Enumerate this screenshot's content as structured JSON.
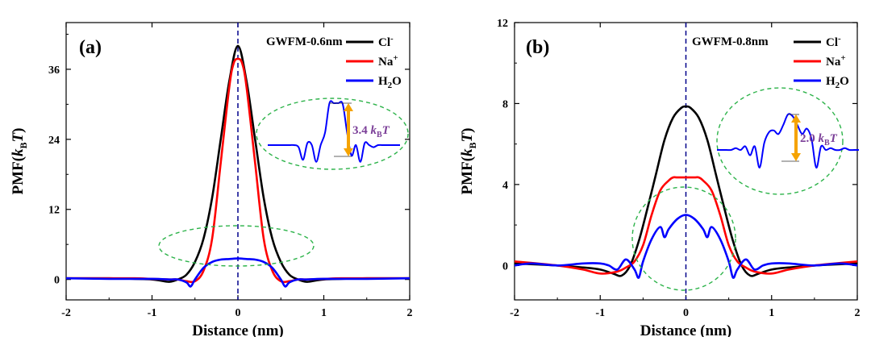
{
  "chart_data": [
    {
      "type": "line",
      "panel_label": "(a)",
      "annotation": "GWFM-0.6nm",
      "xlabel": "Distance (nm)",
      "ylabel_main": "PMF(",
      "ylabel_k": "k",
      "ylabel_sub": "B",
      "ylabel_T": "T",
      "ylabel_close": ")",
      "xlim": [
        -2,
        2
      ],
      "ylim": [
        -3.5,
        44
      ],
      "xticks": [
        -2,
        -1,
        0,
        1,
        2
      ],
      "yticks": [
        0,
        12,
        24,
        36
      ],
      "legend_position": "top-right",
      "legend": [
        {
          "key": "cl",
          "base": "Cl",
          "sup": "-",
          "sub": "",
          "color": "#000000"
        },
        {
          "key": "na",
          "base": "Na",
          "sup": "+",
          "sub": "",
          "color": "#ff0000"
        },
        {
          "key": "h2o",
          "base": "H",
          "sup": "",
          "sub": "2",
          "tail": "O",
          "color": "#0000ff"
        }
      ],
      "series": [
        {
          "name": "Cl-",
          "color": "#000000",
          "x": [
            -2,
            -1.5,
            -1.2,
            -1.0,
            -0.9,
            -0.8,
            -0.7,
            -0.6,
            -0.5,
            -0.4,
            -0.3,
            -0.2,
            -0.1,
            0,
            0.1,
            0.2,
            0.3,
            0.4,
            0.5,
            0.6,
            0.7,
            0.8,
            0.9,
            1.0,
            1.2,
            1.5,
            2
          ],
          "y": [
            0.2,
            0.2,
            0.1,
            0.0,
            -0.2,
            -0.4,
            0.0,
            0.8,
            3.0,
            7.0,
            14.0,
            24.0,
            34.0,
            40.0,
            34.0,
            24.0,
            14.0,
            7.0,
            3.0,
            0.8,
            0.0,
            -0.4,
            -0.2,
            0.0,
            0.1,
            0.2,
            0.2
          ]
        },
        {
          "name": "Na+",
          "color": "#ff0000",
          "x": [
            -2,
            -1.5,
            -1.2,
            -1.0,
            -0.8,
            -0.7,
            -0.6,
            -0.5,
            -0.4,
            -0.3,
            -0.2,
            -0.1,
            -0.05,
            0,
            0.05,
            0.1,
            0.2,
            0.3,
            0.4,
            0.5,
            0.6,
            0.7,
            0.8,
            1.0,
            1.2,
            1.5,
            2
          ],
          "y": [
            0.2,
            0.2,
            0.2,
            0.1,
            0.0,
            0.0,
            -0.3,
            -0.3,
            1.5,
            7.0,
            20.0,
            33.0,
            37.0,
            37.8,
            37.0,
            33.0,
            20.0,
            7.0,
            1.5,
            -0.3,
            -0.3,
            0.0,
            0.0,
            0.1,
            0.2,
            0.2,
            0.2
          ]
        },
        {
          "name": "H2O",
          "color": "#0000ff",
          "x": [
            -2,
            -1.5,
            -1.0,
            -0.8,
            -0.7,
            -0.6,
            -0.55,
            -0.5,
            -0.4,
            -0.3,
            -0.2,
            -0.1,
            0,
            0.1,
            0.2,
            0.3,
            0.4,
            0.5,
            0.55,
            0.6,
            0.7,
            0.8,
            1.0,
            1.5,
            2
          ],
          "y": [
            0.2,
            0.1,
            0.1,
            0.0,
            0.0,
            -0.5,
            -1.2,
            0.0,
            2.0,
            3.0,
            3.4,
            3.5,
            3.6,
            3.5,
            3.4,
            3.0,
            2.0,
            0.0,
            -1.2,
            -0.5,
            0.0,
            0.0,
            0.1,
            0.1,
            0.2
          ]
        }
      ],
      "inset_label_value": "3.4",
      "inset_label_k": "k",
      "inset_label_sub": "B",
      "inset_label_T": "T",
      "inset_trace": [
        0,
        0,
        0,
        0,
        0,
        0,
        0,
        -0.05,
        -0.35,
        0.05,
        0,
        -0.4,
        0,
        0.3,
        1.0,
        1.0,
        1.0,
        0.98,
        0.3,
        -0.25,
        0.0,
        -0.4,
        0.05,
        0,
        -0.05,
        0,
        0,
        0,
        0,
        0,
        0
      ],
      "inset_peak_fraction": 0.62
    },
    {
      "type": "line",
      "panel_label": "(b)",
      "annotation": "GWFM-0.8nm",
      "xlabel": "Distance (nm)",
      "ylabel_main": "PMF(",
      "ylabel_k": "k",
      "ylabel_sub": "B",
      "ylabel_T": "T",
      "ylabel_close": ")",
      "xlim": [
        -2,
        2
      ],
      "ylim": [
        -1.7,
        12
      ],
      "xticks": [
        -2,
        -1,
        0,
        1,
        2
      ],
      "yticks": [
        0,
        4,
        8,
        12
      ],
      "legend_position": "top-right",
      "legend": [
        {
          "key": "cl",
          "base": "Cl",
          "sup": "-",
          "sub": "",
          "color": "#000000"
        },
        {
          "key": "na",
          "base": "Na",
          "sup": "+",
          "sub": "",
          "color": "#ff0000"
        },
        {
          "key": "h2o",
          "base": "H",
          "sup": "",
          "sub": "2",
          "tail": "O",
          "color": "#0000ff"
        }
      ],
      "series": [
        {
          "name": "Cl-",
          "color": "#000000",
          "x": [
            -2,
            -1.5,
            -1.2,
            -1.0,
            -0.85,
            -0.75,
            -0.65,
            -0.55,
            -0.45,
            -0.35,
            -0.25,
            -0.15,
            -0.05,
            0,
            0.05,
            0.15,
            0.25,
            0.35,
            0.45,
            0.55,
            0.65,
            0.75,
            0.85,
            1.0,
            1.2,
            1.5,
            2
          ],
          "y": [
            0.1,
            0.0,
            -0.1,
            -0.2,
            -0.4,
            -0.5,
            0.0,
            1.2,
            2.8,
            4.5,
            6.2,
            7.3,
            7.8,
            7.85,
            7.8,
            7.3,
            6.2,
            4.5,
            2.8,
            1.2,
            0.0,
            -0.5,
            -0.4,
            -0.2,
            -0.1,
            0.0,
            0.1
          ]
        },
        {
          "name": "Na+",
          "color": "#ff0000",
          "x": [
            -2,
            -1.5,
            -1.2,
            -1.0,
            -0.8,
            -0.7,
            -0.6,
            -0.5,
            -0.4,
            -0.3,
            -0.2,
            -0.15,
            -0.1,
            0,
            0.1,
            0.15,
            0.2,
            0.3,
            0.4,
            0.5,
            0.6,
            0.7,
            0.8,
            1.0,
            1.2,
            1.5,
            2
          ],
          "y": [
            0.2,
            0.0,
            -0.2,
            -0.4,
            -0.3,
            -0.1,
            0.2,
            1.0,
            2.5,
            3.7,
            4.2,
            4.35,
            4.35,
            4.35,
            4.35,
            4.35,
            4.2,
            3.7,
            2.5,
            1.0,
            0.2,
            -0.1,
            -0.3,
            -0.4,
            -0.2,
            0.0,
            0.2
          ]
        },
        {
          "name": "H2O",
          "color": "#0000ff",
          "x": [
            -2,
            -1.8,
            -1.5,
            -1.2,
            -1.0,
            -0.9,
            -0.8,
            -0.7,
            -0.6,
            -0.55,
            -0.5,
            -0.4,
            -0.3,
            -0.25,
            -0.2,
            -0.1,
            0,
            0.1,
            0.2,
            0.25,
            0.3,
            0.4,
            0.5,
            0.55,
            0.6,
            0.7,
            0.8,
            0.9,
            1.0,
            1.2,
            1.5,
            1.8,
            2
          ],
          "y": [
            0.0,
            0.1,
            0.0,
            0.1,
            0.1,
            0.0,
            -0.2,
            0.3,
            -0.2,
            -0.6,
            0.2,
            1.3,
            1.9,
            1.4,
            1.8,
            2.3,
            2.5,
            2.3,
            1.8,
            1.4,
            1.9,
            1.3,
            0.2,
            -0.6,
            -0.2,
            0.3,
            -0.2,
            0.0,
            0.1,
            0.1,
            0.0,
            0.1,
            0.0
          ]
        }
      ],
      "inset_label_value": "2.0",
      "inset_label_k": "k",
      "inset_label_sub": "B",
      "inset_label_T": "T",
      "inset_trace": [
        0,
        0,
        0,
        0,
        0.05,
        0,
        0.1,
        -0.15,
        0.1,
        -0.5,
        0.2,
        0.5,
        0.55,
        0.45,
        0.7,
        1.0,
        0.95,
        0.7,
        0.45,
        0.6,
        0.3,
        -0.5,
        0.1,
        0,
        0.05,
        0,
        0,
        0.05,
        0,
        0,
        0
      ],
      "inset_peak_fraction": 0.7
    }
  ]
}
